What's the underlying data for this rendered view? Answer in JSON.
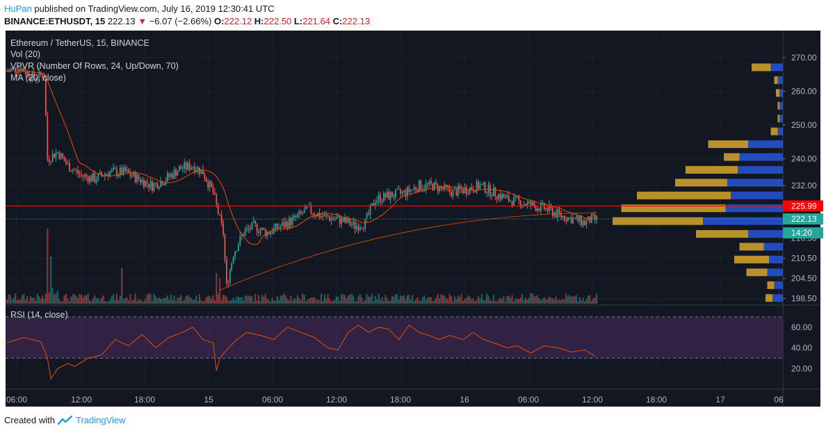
{
  "header": {
    "author": "HuPan",
    "published": " published on TradingView.com, July 16, 2019 12:30:41 UTC",
    "symbol": "BINANCE:ETHUSDT, 15",
    "price": "222.13",
    "change": "−6.07 (−2.66%)",
    "o_label": "O:",
    "o": "222.12",
    "h_label": "H:",
    "h": "222.50",
    "l_label": "L:",
    "l": "221.64",
    "c_label": "C:",
    "c": "222.13"
  },
  "legend": {
    "title": "Ethereum / TetherUS, 15, BINANCE",
    "vol": "Vol (20)",
    "vpvr": "VPVR (Number Of Rows, 24, Up/Down, 70)",
    "ma": "MA (20, close)",
    "rsi": "RSI (14, close)"
  },
  "badges": {
    "red_line": "225.99",
    "last_price": "222.13",
    "countdown": "14:20"
  },
  "footer": {
    "created_with": "Created with",
    "brand": "TradingView"
  },
  "colors": {
    "background": "#131722",
    "up": "#26a69a",
    "down": "#ef5350",
    "vp_up": "#2962ff",
    "vp_down": "#fbc02d",
    "rsi_fill": "#4a2a5e",
    "ma": "#e65100"
  },
  "chart_data": {
    "type": "candlestick",
    "price_axis_ticks": [
      "270.00",
      "260.00",
      "250.00",
      "240.00",
      "232.00",
      "225.99",
      "216.50",
      "210.50",
      "204.50",
      "198.50"
    ],
    "time_axis_ticks": [
      "06:00",
      "12:00",
      "18:00",
      "15",
      "06:00",
      "12:00",
      "18:00",
      "16",
      "06:00",
      "12:00",
      "18:00",
      "17",
      "06"
    ],
    "rsi_axis_ticks": [
      "60.00",
      "40.00",
      "20.00"
    ],
    "rsi_bands": [
      70,
      30
    ],
    "price_anchors": [
      [
        0,
        266
      ],
      [
        8,
        267
      ],
      [
        16,
        264
      ],
      [
        22,
        265
      ],
      [
        24,
        240
      ],
      [
        30,
        242
      ],
      [
        36,
        238
      ],
      [
        44,
        235
      ],
      [
        52,
        234
      ],
      [
        60,
        236
      ],
      [
        70,
        236
      ],
      [
        78,
        234
      ],
      [
        86,
        232
      ],
      [
        94,
        234
      ],
      [
        102,
        237
      ],
      [
        110,
        238
      ],
      [
        116,
        236
      ],
      [
        122,
        230
      ],
      [
        128,
        218
      ],
      [
        130,
        202
      ],
      [
        134,
        212
      ],
      [
        140,
        218
      ],
      [
        146,
        220
      ],
      [
        154,
        218
      ],
      [
        162,
        220
      ],
      [
        170,
        222
      ],
      [
        178,
        225
      ],
      [
        186,
        223
      ],
      [
        196,
        222
      ],
      [
        202,
        221
      ],
      [
        206,
        220
      ],
      [
        212,
        221
      ],
      [
        218,
        228
      ],
      [
        226,
        229
      ],
      [
        236,
        230
      ],
      [
        244,
        232
      ],
      [
        252,
        232
      ],
      [
        258,
        231
      ],
      [
        264,
        230
      ],
      [
        272,
        231
      ],
      [
        280,
        232
      ],
      [
        288,
        230
      ],
      [
        296,
        228
      ],
      [
        304,
        227
      ],
      [
        312,
        226
      ],
      [
        320,
        225
      ],
      [
        328,
        223
      ],
      [
        336,
        222
      ],
      [
        342,
        221
      ],
      [
        346,
        222
      ]
    ],
    "rsi_values": [
      [
        0,
        45
      ],
      [
        10,
        50
      ],
      [
        20,
        46
      ],
      [
        24,
        30
      ],
      [
        26,
        10
      ],
      [
        30,
        20
      ],
      [
        36,
        25
      ],
      [
        40,
        22
      ],
      [
        44,
        26
      ],
      [
        48,
        30
      ],
      [
        56,
        33
      ],
      [
        64,
        48
      ],
      [
        72,
        42
      ],
      [
        80,
        53
      ],
      [
        88,
        40
      ],
      [
        96,
        50
      ],
      [
        104,
        55
      ],
      [
        110,
        60
      ],
      [
        116,
        48
      ],
      [
        122,
        45
      ],
      [
        124,
        18
      ],
      [
        126,
        30
      ],
      [
        130,
        38
      ],
      [
        136,
        48
      ],
      [
        142,
        55
      ],
      [
        150,
        52
      ],
      [
        158,
        48
      ],
      [
        166,
        60
      ],
      [
        174,
        55
      ],
      [
        182,
        50
      ],
      [
        190,
        40
      ],
      [
        196,
        38
      ],
      [
        202,
        55
      ],
      [
        208,
        62
      ],
      [
        214,
        55
      ],
      [
        220,
        60
      ],
      [
        226,
        58
      ],
      [
        232,
        48
      ],
      [
        238,
        62
      ],
      [
        244,
        55
      ],
      [
        250,
        52
      ],
      [
        256,
        48
      ],
      [
        262,
        52
      ],
      [
        270,
        48
      ],
      [
        276,
        55
      ],
      [
        282,
        48
      ],
      [
        288,
        45
      ],
      [
        296,
        40
      ],
      [
        302,
        42
      ],
      [
        310,
        35
      ],
      [
        318,
        42
      ],
      [
        326,
        40
      ],
      [
        334,
        36
      ],
      [
        342,
        38
      ],
      [
        348,
        32
      ]
    ],
    "vpvr_rows": [
      {
        "price": 267.0,
        "up": 0.07,
        "down": 0.11
      },
      {
        "price": 263.2,
        "up": 0.03,
        "down": 0.02
      },
      {
        "price": 259.4,
        "up": 0.02,
        "down": 0.02
      },
      {
        "price": 255.6,
        "up": 0.02,
        "down": 0.01
      },
      {
        "price": 251.8,
        "up": 0.02,
        "down": 0.01
      },
      {
        "price": 248.0,
        "up": 0.03,
        "down": 0.04
      },
      {
        "price": 244.2,
        "up": 0.2,
        "down": 0.23
      },
      {
        "price": 240.4,
        "up": 0.25,
        "down": 0.09
      },
      {
        "price": 236.6,
        "up": 0.26,
        "down": 0.3
      },
      {
        "price": 232.8,
        "up": 0.32,
        "down": 0.3
      },
      {
        "price": 229.0,
        "up": 0.3,
        "down": 0.54
      },
      {
        "price": 225.2,
        "up": 0.33,
        "down": 0.6
      },
      {
        "price": 221.4,
        "up": 0.46,
        "down": 0.52
      },
      {
        "price": 217.6,
        "up": 0.2,
        "down": 0.3
      },
      {
        "price": 213.8,
        "up": 0.11,
        "down": 0.14
      },
      {
        "price": 210.0,
        "up": 0.08,
        "down": 0.2
      },
      {
        "price": 206.2,
        "up": 0.09,
        "down": 0.12
      },
      {
        "price": 202.4,
        "up": 0.05,
        "down": 0.04
      },
      {
        "price": 198.6,
        "up": 0.06,
        "down": 0.04
      }
    ]
  }
}
